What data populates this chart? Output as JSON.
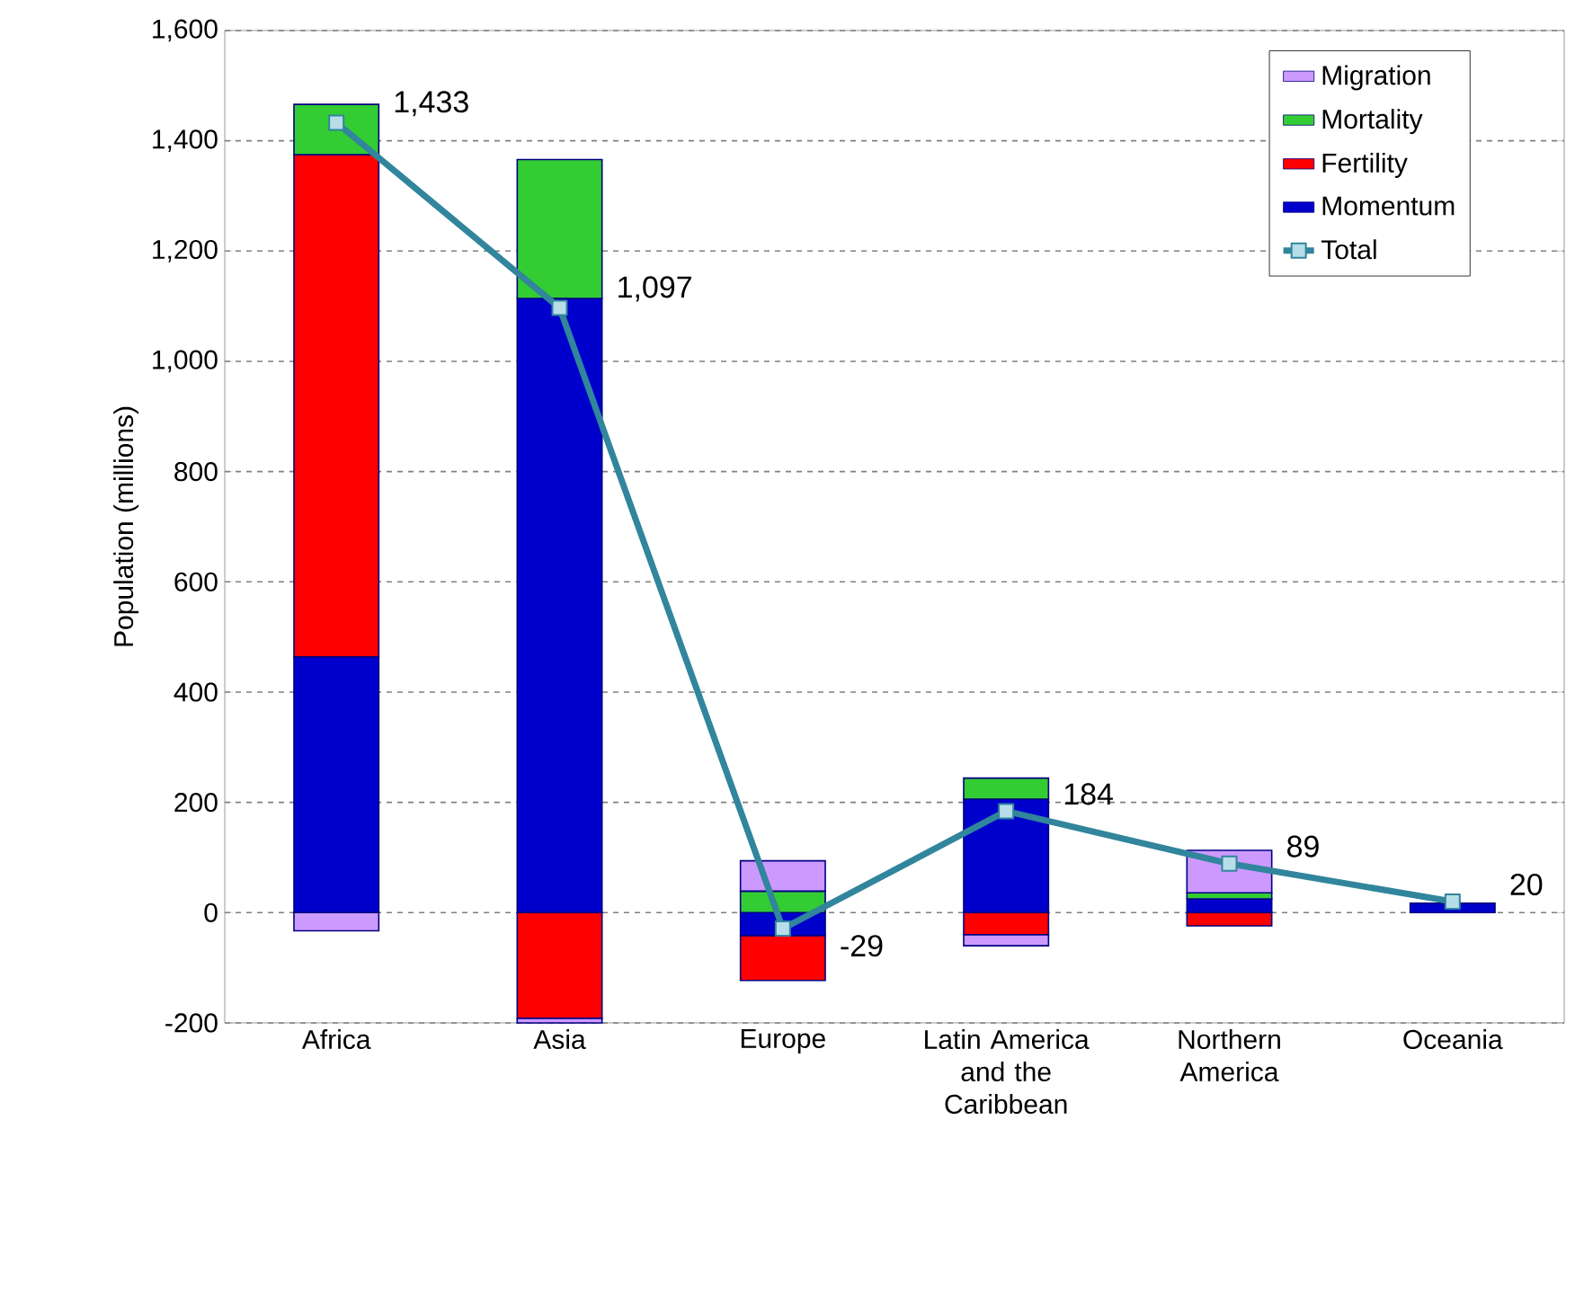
{
  "chart_data": {
    "type": "bar",
    "stacked": true,
    "ylabel": "Population (millions)",
    "categories": [
      "Africa",
      "Asia",
      "Europe",
      "Latin America and the Caribbean",
      "Northern America",
      "Oceania"
    ],
    "series": [
      {
        "name": "Momentum",
        "color": "#0000cc",
        "values": [
          464,
          1114,
          -42,
          206,
          25,
          17
        ]
      },
      {
        "name": "Fertility",
        "color": "#ff0000",
        "values": [
          911,
          -192,
          -81,
          -40,
          -24,
          null
        ]
      },
      {
        "name": "Mortality",
        "color": "#33cc33",
        "values": [
          91,
          252,
          39,
          38,
          11,
          null
        ]
      },
      {
        "name": "Migration",
        "color": "#cc99ff",
        "values": [
          -33,
          -8,
          55,
          -20,
          77,
          null
        ]
      },
      {
        "name": "Total",
        "type": "line",
        "color": "#31859c",
        "marker": "square",
        "values": [
          1433,
          1097,
          -29,
          184,
          89,
          20
        ],
        "value_labels": [
          "1,433",
          "1,097",
          "-29",
          "184",
          "89",
          "20"
        ]
      }
    ],
    "ylim": [
      -200,
      1600
    ],
    "yticks": [
      -200,
      0,
      200,
      400,
      600,
      800,
      {
        "value": 1000,
        "label": "1,000"
      },
      {
        "value": 1200,
        "label": "1,200"
      },
      {
        "value": 1400,
        "label": "1,400"
      },
      {
        "value": 1600,
        "label": "1,600"
      }
    ],
    "grid": "y",
    "legend": "top right"
  }
}
